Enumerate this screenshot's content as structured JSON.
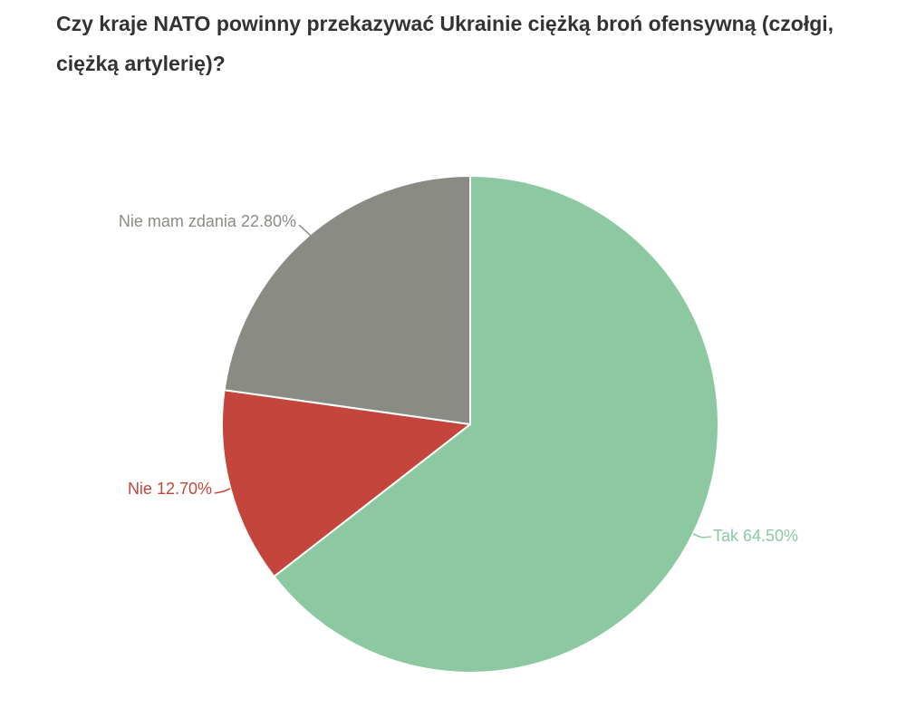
{
  "title": {
    "text": "Czy kraje NATO powinny przekazywać Ukrainie ciężką broń ofensywną (czołgi, ciężką artylerię)?",
    "color": "#333333"
  },
  "chart_data": {
    "type": "pie",
    "title": "Czy kraje NATO powinny przekazywać Ukrainie ciężką broń ofensywną (czołgi, ciężką artylerię)?",
    "legend": "none",
    "label_style": "outside-with-connectors",
    "start_angle_deg": 0,
    "direction": "clockwise",
    "background": "#ffffff",
    "slice_border_color": "#ffffff",
    "slices": [
      {
        "name": "Tak",
        "value": 64.5,
        "label": "Tak 64.50%",
        "color": "#8CC8A0"
      },
      {
        "name": "Nie",
        "value": 12.7,
        "label": "Nie 12.70%",
        "color": "#C4453B"
      },
      {
        "name": "Nie mam zdania",
        "value": 22.8,
        "label": "Nie mam zdania 22.80%",
        "color": "#8B8B85"
      }
    ]
  }
}
